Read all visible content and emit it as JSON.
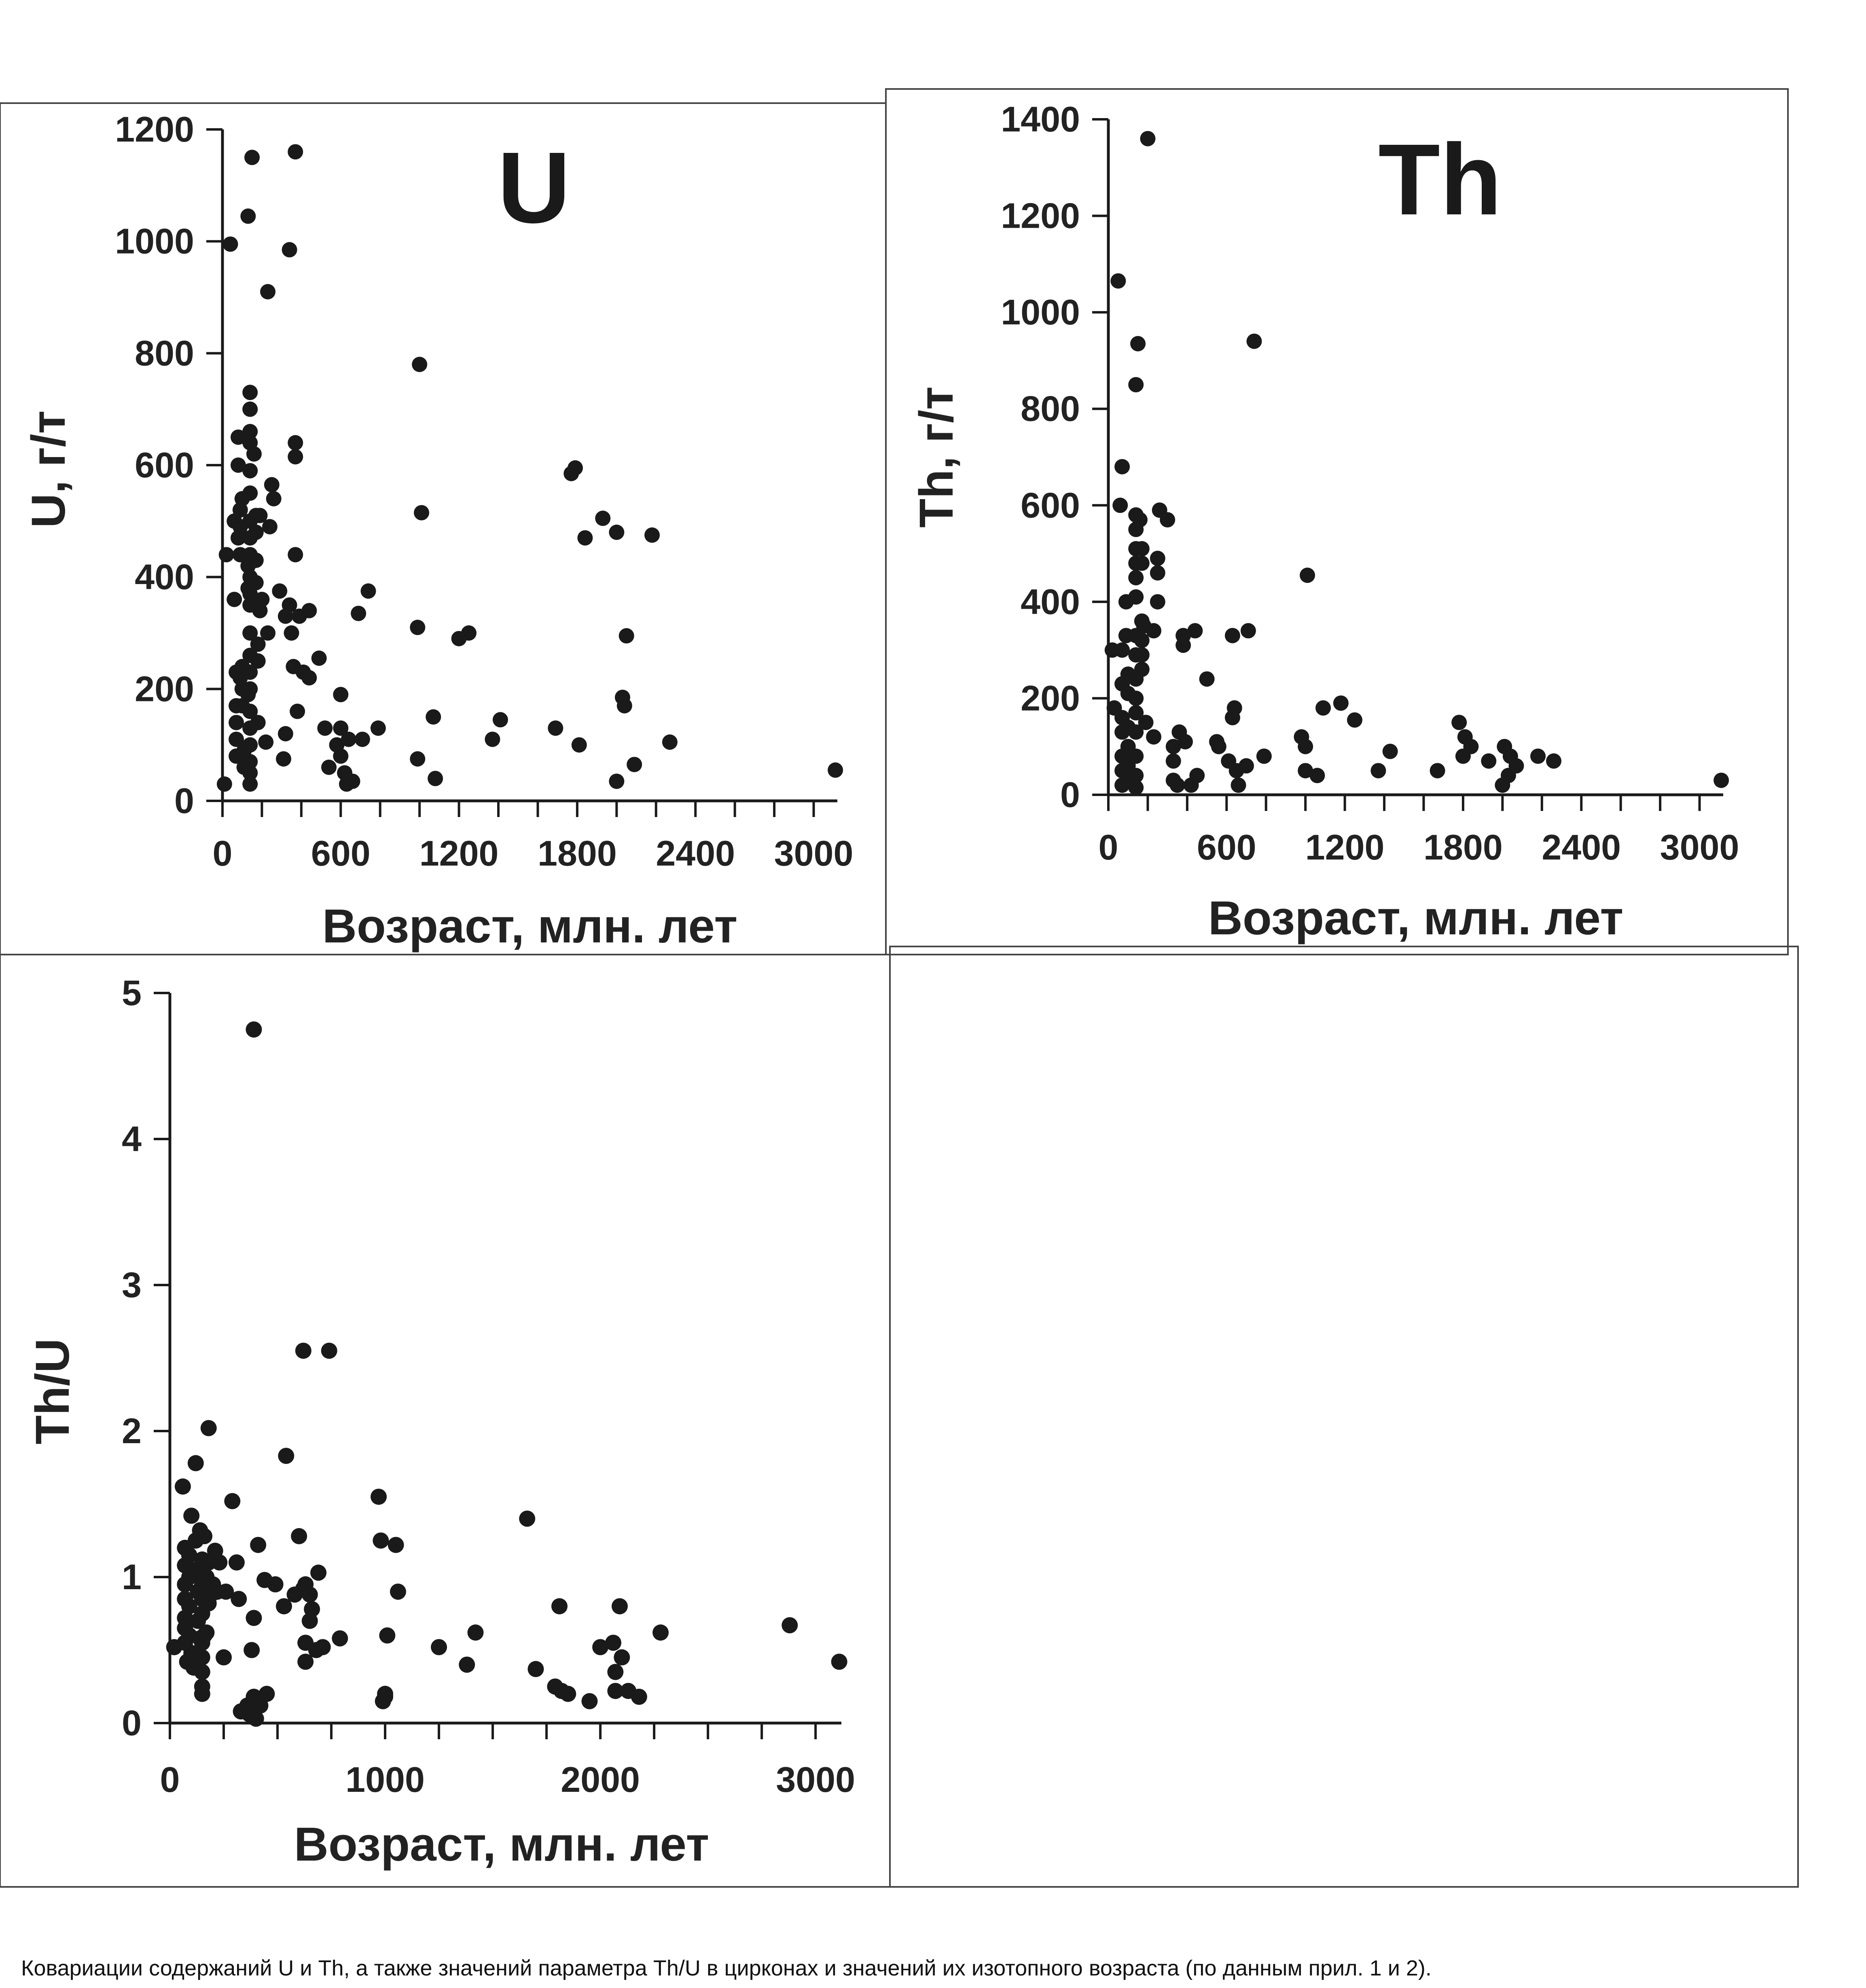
{
  "caption": "Ковариации содержаний U и Th, а также значений параметра Th/U в цирконах и значений их изотопного возраста (по данным прил. 1 и 2).",
  "colors": {
    "ink": "#1a1a1a",
    "frame": "#444444",
    "background": "#ffffff"
  },
  "chart_data": [
    {
      "id": "u",
      "type": "scatter",
      "title": "U",
      "xlabel": "Возраст, млн. лет",
      "ylabel": "U, г/т",
      "xlim": [
        0,
        3120
      ],
      "ylim": [
        0,
        1200
      ],
      "xticks": [
        0,
        600,
        1200,
        1800,
        2400,
        3000
      ],
      "yticks": [
        0,
        200,
        400,
        600,
        800,
        1000,
        1200
      ],
      "grid": false,
      "points": [
        [
          10,
          30
        ],
        [
          20,
          440
        ],
        [
          40,
          995
        ],
        [
          60,
          500
        ],
        [
          60,
          360
        ],
        [
          70,
          230
        ],
        [
          70,
          170
        ],
        [
          70,
          140
        ],
        [
          70,
          110
        ],
        [
          70,
          80
        ],
        [
          80,
          600
        ],
        [
          80,
          650
        ],
        [
          80,
          470
        ],
        [
          90,
          520
        ],
        [
          90,
          490
        ],
        [
          90,
          440
        ],
        [
          90,
          220
        ],
        [
          100,
          540
        ],
        [
          100,
          240
        ],
        [
          100,
          200
        ],
        [
          100,
          170
        ],
        [
          110,
          90
        ],
        [
          110,
          60
        ],
        [
          130,
          1045
        ],
        [
          130,
          420
        ],
        [
          130,
          380
        ],
        [
          130,
          190
        ],
        [
          140,
          730
        ],
        [
          140,
          700
        ],
        [
          140,
          660
        ],
        [
          140,
          640
        ],
        [
          140,
          590
        ],
        [
          140,
          550
        ],
        [
          140,
          500
        ],
        [
          140,
          470
        ],
        [
          140,
          440
        ],
        [
          140,
          400
        ],
        [
          140,
          370
        ],
        [
          140,
          350
        ],
        [
          140,
          300
        ],
        [
          140,
          260
        ],
        [
          140,
          230
        ],
        [
          140,
          200
        ],
        [
          140,
          160
        ],
        [
          140,
          130
        ],
        [
          140,
          100
        ],
        [
          140,
          70
        ],
        [
          140,
          50
        ],
        [
          140,
          30
        ],
        [
          150,
          1150
        ],
        [
          160,
          620
        ],
        [
          170,
          510
        ],
        [
          170,
          480
        ],
        [
          170,
          430
        ],
        [
          170,
          390
        ],
        [
          180,
          280
        ],
        [
          180,
          250
        ],
        [
          180,
          140
        ],
        [
          190,
          510
        ],
        [
          190,
          340
        ],
        [
          200,
          360
        ],
        [
          220,
          105
        ],
        [
          230,
          910
        ],
        [
          230,
          300
        ],
        [
          240,
          490
        ],
        [
          250,
          565
        ],
        [
          260,
          540
        ],
        [
          290,
          375
        ],
        [
          310,
          75
        ],
        [
          320,
          330
        ],
        [
          320,
          120
        ],
        [
          340,
          985
        ],
        [
          340,
          350
        ],
        [
          350,
          300
        ],
        [
          360,
          240
        ],
        [
          370,
          1160
        ],
        [
          370,
          640
        ],
        [
          370,
          615
        ],
        [
          370,
          440
        ],
        [
          380,
          160
        ],
        [
          390,
          330
        ],
        [
          410,
          230
        ],
        [
          440,
          340
        ],
        [
          440,
          220
        ],
        [
          490,
          255
        ],
        [
          520,
          130
        ],
        [
          540,
          60
        ],
        [
          580,
          100
        ],
        [
          600,
          190
        ],
        [
          600,
          130
        ],
        [
          600,
          80
        ],
        [
          620,
          50
        ],
        [
          630,
          30
        ],
        [
          640,
          110
        ],
        [
          660,
          35
        ],
        [
          690,
          335
        ],
        [
          710,
          110
        ],
        [
          740,
          375
        ],
        [
          790,
          130
        ],
        [
          990,
          310
        ],
        [
          990,
          75
        ],
        [
          1000,
          780
        ],
        [
          1010,
          515
        ],
        [
          1070,
          150
        ],
        [
          1080,
          40
        ],
        [
          1200,
          290
        ],
        [
          1250,
          300
        ],
        [
          1370,
          110
        ],
        [
          1410,
          145
        ],
        [
          1690,
          130
        ],
        [
          1770,
          585
        ],
        [
          1790,
          595
        ],
        [
          1810,
          100
        ],
        [
          1840,
          470
        ],
        [
          1930,
          505
        ],
        [
          2000,
          480
        ],
        [
          2000,
          35
        ],
        [
          2030,
          185
        ],
        [
          2040,
          170
        ],
        [
          2050,
          295
        ],
        [
          2090,
          65
        ],
        [
          2180,
          475
        ],
        [
          2270,
          105
        ],
        [
          3110,
          55
        ]
      ]
    },
    {
      "id": "th",
      "type": "scatter",
      "title": "Th",
      "xlabel": "Возраст, млн. лет",
      "ylabel": "Th, г/т",
      "xlim": [
        0,
        3120
      ],
      "ylim": [
        0,
        1400
      ],
      "xticks": [
        0,
        600,
        1200,
        1800,
        2400,
        3000
      ],
      "yticks": [
        0,
        200,
        400,
        600,
        800,
        1000,
        1200,
        1400
      ],
      "grid": false,
      "points": [
        [
          20,
          300
        ],
        [
          30,
          180
        ],
        [
          50,
          1065
        ],
        [
          60,
          600
        ],
        [
          70,
          680
        ],
        [
          70,
          300
        ],
        [
          70,
          230
        ],
        [
          70,
          160
        ],
        [
          70,
          130
        ],
        [
          70,
          80
        ],
        [
          70,
          50
        ],
        [
          70,
          20
        ],
        [
          90,
          400
        ],
        [
          90,
          330
        ],
        [
          100,
          250
        ],
        [
          100,
          210
        ],
        [
          100,
          140
        ],
        [
          100,
          100
        ],
        [
          100,
          60
        ],
        [
          110,
          30
        ],
        [
          140,
          850
        ],
        [
          140,
          580
        ],
        [
          140,
          550
        ],
        [
          140,
          510
        ],
        [
          140,
          480
        ],
        [
          140,
          450
        ],
        [
          140,
          410
        ],
        [
          140,
          330
        ],
        [
          140,
          290
        ],
        [
          140,
          240
        ],
        [
          140,
          200
        ],
        [
          140,
          170
        ],
        [
          140,
          130
        ],
        [
          140,
          80
        ],
        [
          140,
          40
        ],
        [
          140,
          15
        ],
        [
          150,
          935
        ],
        [
          160,
          570
        ],
        [
          170,
          510
        ],
        [
          170,
          480
        ],
        [
          170,
          360
        ],
        [
          170,
          320
        ],
        [
          170,
          290
        ],
        [
          170,
          260
        ],
        [
          180,
          350
        ],
        [
          190,
          150
        ],
        [
          200,
          1360
        ],
        [
          230,
          340
        ],
        [
          230,
          120
        ],
        [
          250,
          490
        ],
        [
          250,
          460
        ],
        [
          250,
          400
        ],
        [
          260,
          590
        ],
        [
          300,
          570
        ],
        [
          330,
          100
        ],
        [
          330,
          70
        ],
        [
          330,
          30
        ],
        [
          350,
          20
        ],
        [
          360,
          130
        ],
        [
          380,
          330
        ],
        [
          380,
          310
        ],
        [
          390,
          110
        ],
        [
          420,
          20
        ],
        [
          440,
          340
        ],
        [
          450,
          40
        ],
        [
          500,
          240
        ],
        [
          550,
          110
        ],
        [
          560,
          100
        ],
        [
          610,
          70
        ],
        [
          630,
          330
        ],
        [
          630,
          160
        ],
        [
          640,
          180
        ],
        [
          650,
          50
        ],
        [
          660,
          20
        ],
        [
          700,
          60
        ],
        [
          710,
          340
        ],
        [
          740,
          940
        ],
        [
          790,
          80
        ],
        [
          980,
          120
        ],
        [
          1000,
          100
        ],
        [
          1000,
          50
        ],
        [
          1010,
          455
        ],
        [
          1060,
          40
        ],
        [
          1090,
          180
        ],
        [
          1180,
          190
        ],
        [
          1250,
          155
        ],
        [
          1370,
          50
        ],
        [
          1430,
          90
        ],
        [
          1670,
          50
        ],
        [
          1780,
          150
        ],
        [
          1800,
          80
        ],
        [
          1810,
          120
        ],
        [
          1840,
          100
        ],
        [
          1930,
          70
        ],
        [
          2000,
          20
        ],
        [
          2010,
          100
        ],
        [
          2030,
          40
        ],
        [
          2040,
          80
        ],
        [
          2070,
          60
        ],
        [
          2180,
          80
        ],
        [
          2260,
          70
        ],
        [
          3110,
          30
        ]
      ]
    },
    {
      "id": "thu",
      "type": "scatter",
      "title": "",
      "xlabel": "Возраст, млн. лет",
      "ylabel": "Th/U",
      "xlim": [
        0,
        3120
      ],
      "ylim": [
        0,
        5
      ],
      "xticks": [
        0,
        1000,
        2000,
        3000
      ],
      "yticks": [
        0,
        1,
        2,
        3,
        4,
        5
      ],
      "grid": false,
      "points": [
        [
          20,
          0.52
        ],
        [
          60,
          1.62
        ],
        [
          70,
          1.2
        ],
        [
          70,
          1.08
        ],
        [
          70,
          0.95
        ],
        [
          70,
          0.85
        ],
        [
          70,
          0.72
        ],
        [
          70,
          0.65
        ],
        [
          70,
          0.55
        ],
        [
          80,
          0.42
        ],
        [
          90,
          1.15
        ],
        [
          90,
          1.0
        ],
        [
          90,
          0.8
        ],
        [
          90,
          0.6
        ],
        [
          100,
          1.42
        ],
        [
          100,
          0.48
        ],
        [
          110,
          0.38
        ],
        [
          120,
          1.78
        ],
        [
          120,
          1.25
        ],
        [
          120,
          1.05
        ],
        [
          130,
          0.9
        ],
        [
          130,
          0.7
        ],
        [
          140,
          0.58
        ],
        [
          140,
          1.32
        ],
        [
          150,
          1.12
        ],
        [
          150,
          1.02
        ],
        [
          150,
          0.95
        ],
        [
          150,
          0.85
        ],
        [
          150,
          0.75
        ],
        [
          150,
          0.55
        ],
        [
          150,
          0.45
        ],
        [
          150,
          0.35
        ],
        [
          150,
          0.25
        ],
        [
          150,
          0.2
        ],
        [
          160,
          1.28
        ],
        [
          160,
          0.6
        ],
        [
          170,
          1.0
        ],
        [
          170,
          0.62
        ],
        [
          180,
          2.02
        ],
        [
          180,
          1.1
        ],
        [
          180,
          0.82
        ],
        [
          190,
          0.88
        ],
        [
          200,
          0.95
        ],
        [
          210,
          1.18
        ],
        [
          220,
          0.9
        ],
        [
          230,
          1.1
        ],
        [
          250,
          0.45
        ],
        [
          260,
          0.9
        ],
        [
          290,
          1.52
        ],
        [
          310,
          1.1
        ],
        [
          320,
          0.85
        ],
        [
          330,
          0.08
        ],
        [
          360,
          0.12
        ],
        [
          370,
          0.06
        ],
        [
          380,
          0.5
        ],
        [
          390,
          0.18
        ],
        [
          390,
          0.72
        ],
        [
          390,
          4.75
        ],
        [
          400,
          0.03
        ],
        [
          410,
          1.22
        ],
        [
          420,
          0.12
        ],
        [
          440,
          0.98
        ],
        [
          450,
          0.2
        ],
        [
          490,
          0.95
        ],
        [
          530,
          0.8
        ],
        [
          540,
          1.83
        ],
        [
          580,
          0.88
        ],
        [
          600,
          1.28
        ],
        [
          620,
          2.55
        ],
        [
          620,
          0.92
        ],
        [
          630,
          0.95
        ],
        [
          630,
          0.55
        ],
        [
          630,
          0.42
        ],
        [
          650,
          0.7
        ],
        [
          650,
          0.88
        ],
        [
          660,
          0.78
        ],
        [
          680,
          0.5
        ],
        [
          690,
          1.03
        ],
        [
          710,
          0.52
        ],
        [
          740,
          2.55
        ],
        [
          790,
          0.58
        ],
        [
          970,
          1.55
        ],
        [
          980,
          1.25
        ],
        [
          990,
          0.15
        ],
        [
          1000,
          0.2
        ],
        [
          1000,
          0.18
        ],
        [
          1010,
          0.6
        ],
        [
          1050,
          1.22
        ],
        [
          1060,
          0.9
        ],
        [
          1250,
          0.52
        ],
        [
          1380,
          0.4
        ],
        [
          1420,
          0.62
        ],
        [
          1660,
          1.4
        ],
        [
          1700,
          0.37
        ],
        [
          1790,
          0.25
        ],
        [
          1810,
          0.8
        ],
        [
          1820,
          0.22
        ],
        [
          1850,
          0.2
        ],
        [
          1950,
          0.15
        ],
        [
          2000,
          0.52
        ],
        [
          2060,
          0.55
        ],
        [
          2070,
          0.35
        ],
        [
          2070,
          0.22
        ],
        [
          2090,
          0.8
        ],
        [
          2100,
          0.45
        ],
        [
          2130,
          0.22
        ],
        [
          2180,
          0.18
        ],
        [
          2280,
          0.62
        ],
        [
          2880,
          0.67
        ],
        [
          3110,
          0.42
        ]
      ]
    }
  ]
}
